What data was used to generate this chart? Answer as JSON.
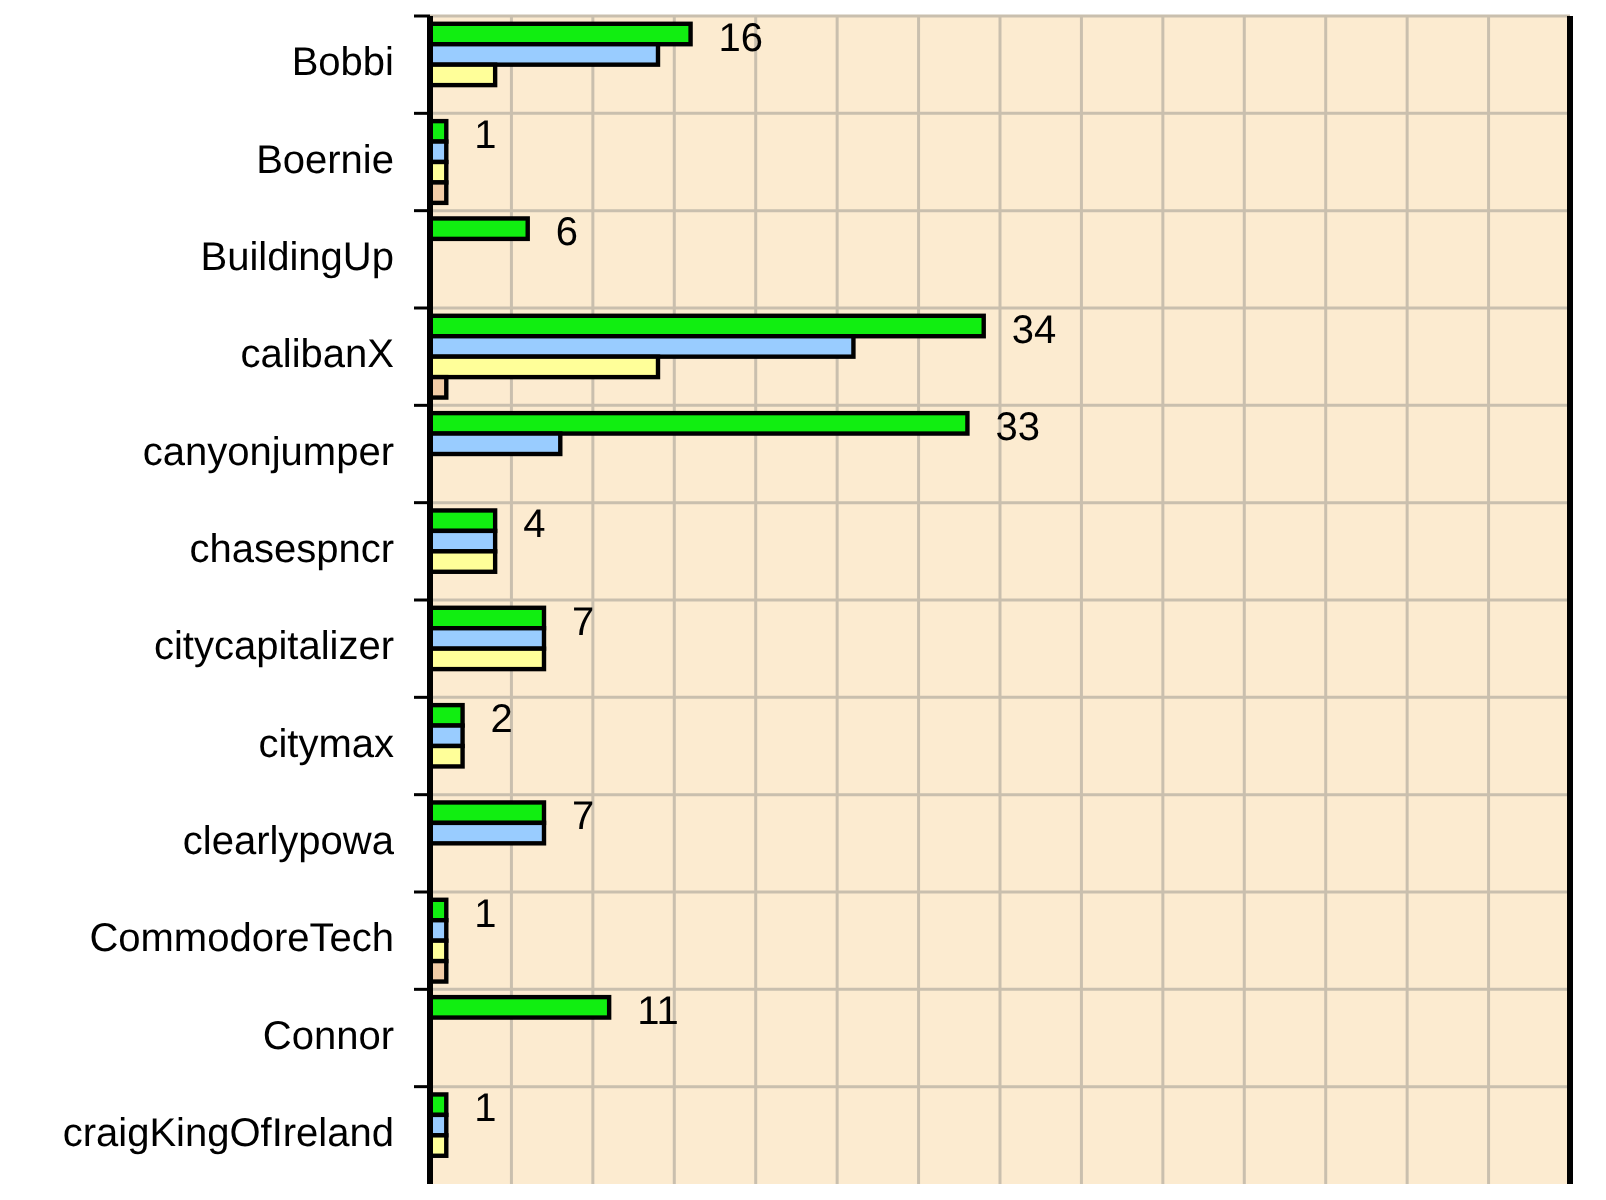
{
  "chart_data": {
    "type": "bar",
    "orientation": "horizontal",
    "categories": [
      "Bobbi",
      "Boernie",
      "BuildingUp",
      "calibanX",
      "canyonjumper",
      "chasespncr",
      "citycapitalizer",
      "citymax",
      "clearlypowa",
      "CommodoreTech",
      "Connor",
      "craigKingOfIreland"
    ],
    "series": [
      {
        "color": "#11ee11",
        "values": [
          16,
          1,
          6,
          34,
          33,
          4,
          7,
          2,
          7,
          1,
          11,
          1
        ],
        "value_labels": [
          "16",
          "1",
          "6",
          "34",
          "33",
          "4",
          "7",
          "2",
          "7",
          "1",
          "11",
          "1"
        ]
      },
      {
        "color": "#99ccff",
        "values": [
          14,
          1,
          null,
          26,
          8,
          4,
          7,
          2,
          7,
          1,
          null,
          1
        ]
      },
      {
        "color": "#ffff99",
        "values": [
          4,
          1,
          null,
          14,
          null,
          4,
          7,
          2,
          null,
          1,
          null,
          1
        ]
      },
      {
        "color": "#f2cca6",
        "values": [
          null,
          1,
          null,
          1,
          null,
          null,
          null,
          null,
          null,
          1,
          null,
          null
        ]
      }
    ],
    "xlim": [
      0,
      70
    ],
    "xticks": [
      {
        "value": 0,
        "label": null
      },
      {
        "value": 5,
        "label": null
      },
      {
        "value": 10,
        "label": null
      },
      {
        "value": 15,
        "label": null
      },
      {
        "value": 20,
        "label": null
      },
      {
        "value": 25,
        "label": null
      },
      {
        "value": 30,
        "label": null
      },
      {
        "value": 35,
        "label": null
      },
      {
        "value": 40,
        "label": null
      },
      {
        "value": 45,
        "label": null
      },
      {
        "value": 50,
        "label": null
      },
      {
        "value": 55,
        "label": null
      },
      {
        "value": 60,
        "label": null
      },
      {
        "value": 65,
        "label": null
      },
      {
        "value": 70,
        "label": null
      }
    ],
    "grid": true
  }
}
